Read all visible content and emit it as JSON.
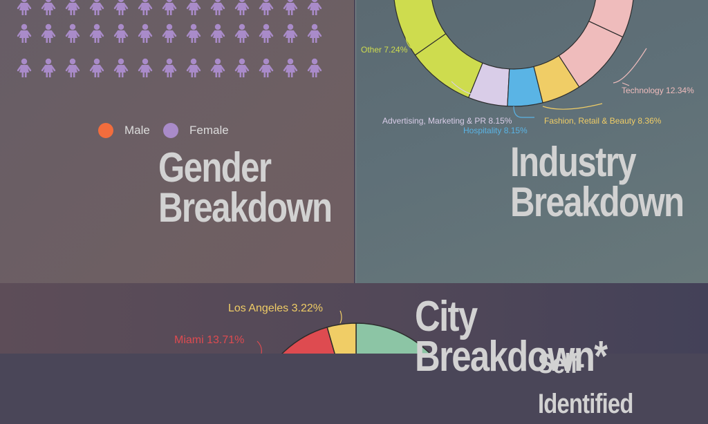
{
  "gender": {
    "title_line1": "Gender",
    "title_line2": "Breakdown",
    "legend": [
      {
        "label": "Male",
        "color": "#f26d3d"
      },
      {
        "label": "Female",
        "color": "#a98bc9"
      }
    ],
    "icon_color": "#a98bc9"
  },
  "industry": {
    "title_line1": "Industry",
    "title_line2": "Breakdown"
  },
  "city": {
    "title": "City Breakdown*",
    "subtitle_partial": "Self-Identified"
  },
  "chart_data": [
    {
      "type": "pie",
      "title": "Industry Breakdown",
      "style": "donut",
      "slices": [
        {
          "label": "Other",
          "value": 7.24,
          "display": "Other 7.24%",
          "color": "#cedc4e"
        },
        {
          "label": "Advertising, Marketing & PR",
          "value": 8.15,
          "display": "Advertising, Marketing & PR 8.15%",
          "color": "#d9cde8"
        },
        {
          "label": "Hospitality",
          "value": 8.15,
          "display": "Hospitality 8.15%",
          "color": "#5ab4e5"
        },
        {
          "label": "Fashion, Retail & Beauty",
          "value": 8.36,
          "display": "Fashion, Retail & Beauty 8.36%",
          "color": "#f0cd66"
        },
        {
          "label": "Technology",
          "value": 12.34,
          "display": "Technology 12.34%",
          "color": "#efbcbc"
        }
      ]
    },
    {
      "type": "pie",
      "title": "City Breakdown*",
      "slices": [
        {
          "label": "Los Angeles",
          "value": 3.22,
          "display": "Los Angeles 3.22%",
          "color": "#f0cd66"
        },
        {
          "label": "Miami",
          "value": 13.71,
          "display": "Miami 13.71%",
          "color": "#de4b50"
        }
      ]
    }
  ]
}
